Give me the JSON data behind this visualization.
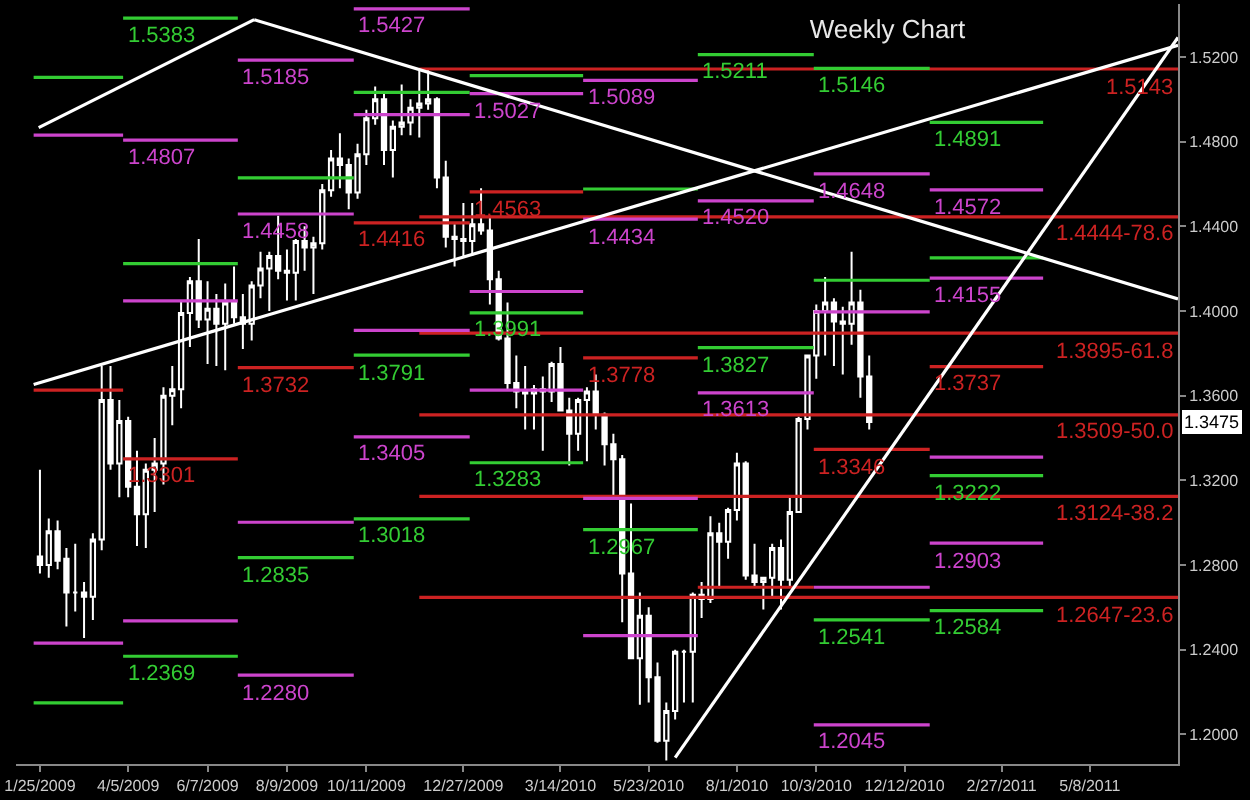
{
  "chart_data": {
    "type": "candlestick",
    "title": "Weekly Chart",
    "color": "#ffffff",
    "x": [
      "2009-01-25",
      "2009-02-01",
      "2009-02-08",
      "2009-02-15",
      "2009-02-22",
      "2009-03-01",
      "2009-03-08",
      "2009-03-15",
      "2009-03-22",
      "2009-03-29",
      "2009-04-05",
      "2009-04-12",
      "2009-04-19",
      "2009-04-26",
      "2009-05-03",
      "2009-05-10",
      "2009-05-17",
      "2009-05-24",
      "2009-05-31",
      "2009-06-07",
      "2009-06-14",
      "2009-06-21",
      "2009-06-28",
      "2009-07-05",
      "2009-07-12",
      "2009-07-19",
      "2009-07-26",
      "2009-08-02",
      "2009-08-09",
      "2009-08-16",
      "2009-08-23",
      "2009-08-30",
      "2009-09-06",
      "2009-09-13",
      "2009-09-20",
      "2009-09-27",
      "2009-10-04",
      "2009-10-11",
      "2009-10-18",
      "2009-10-25",
      "2009-11-01",
      "2009-11-08",
      "2009-11-15",
      "2009-11-22",
      "2009-11-29",
      "2009-12-06",
      "2009-12-13",
      "2009-12-20",
      "2009-12-27",
      "2010-01-03",
      "2010-01-10",
      "2010-01-17",
      "2010-01-24",
      "2010-01-31",
      "2010-02-07",
      "2010-02-14",
      "2010-02-21",
      "2010-02-28",
      "2010-03-07",
      "2010-03-14",
      "2010-03-21",
      "2010-03-28",
      "2010-04-04",
      "2010-04-11",
      "2010-04-18",
      "2010-04-25",
      "2010-05-02",
      "2010-05-09",
      "2010-05-16",
      "2010-05-23",
      "2010-05-30",
      "2010-06-06",
      "2010-06-13",
      "2010-06-20",
      "2010-06-27",
      "2010-07-04",
      "2010-07-11",
      "2010-07-18",
      "2010-07-25",
      "2010-08-01",
      "2010-08-08",
      "2010-08-15",
      "2010-08-22",
      "2010-08-29",
      "2010-09-05",
      "2010-09-12",
      "2010-09-19",
      "2010-09-26",
      "2010-10-03",
      "2010-10-10",
      "2010-10-17",
      "2010-10-24",
      "2010-10-31",
      "2010-11-07",
      "2010-11-14"
    ],
    "ohlc": [
      [
        1.284,
        1.325,
        1.276,
        1.28
      ],
      [
        1.28,
        1.302,
        1.274,
        1.296
      ],
      [
        1.296,
        1.301,
        1.278,
        1.282
      ],
      [
        1.283,
        1.288,
        1.251,
        1.267
      ],
      [
        1.267,
        1.29,
        1.258,
        1.267
      ],
      [
        1.267,
        1.272,
        1.2455,
        1.265
      ],
      [
        1.265,
        1.295,
        1.254,
        1.292
      ],
      [
        1.292,
        1.374,
        1.287,
        1.358
      ],
      [
        1.358,
        1.374,
        1.325,
        1.328
      ],
      [
        1.328,
        1.358,
        1.312,
        1.348
      ],
      [
        1.348,
        1.35,
        1.312,
        1.317
      ],
      [
        1.317,
        1.334,
        1.289,
        1.304
      ],
      [
        1.304,
        1.328,
        1.288,
        1.325
      ],
      [
        1.325,
        1.34,
        1.305,
        1.328
      ],
      [
        1.328,
        1.364,
        1.318,
        1.36
      ],
      [
        1.36,
        1.374,
        1.346,
        1.363
      ],
      [
        1.363,
        1.405,
        1.354,
        1.399
      ],
      [
        1.399,
        1.416,
        1.383,
        1.414
      ],
      [
        1.414,
        1.434,
        1.392,
        1.396
      ],
      [
        1.396,
        1.414,
        1.375,
        1.401
      ],
      [
        1.401,
        1.408,
        1.374,
        1.394
      ],
      [
        1.394,
        1.413,
        1.372,
        1.404
      ],
      [
        1.404,
        1.421,
        1.394,
        1.397
      ],
      [
        1.397,
        1.408,
        1.382,
        1.394
      ],
      [
        1.394,
        1.414,
        1.386,
        1.412
      ],
      [
        1.412,
        1.428,
        1.406,
        1.42
      ],
      [
        1.42,
        1.428,
        1.4,
        1.426
      ],
      [
        1.426,
        1.445,
        1.415,
        1.419
      ],
      [
        1.419,
        1.429,
        1.405,
        1.418
      ],
      [
        1.418,
        1.434,
        1.405,
        1.433
      ],
      [
        1.433,
        1.44,
        1.419,
        1.43
      ],
      [
        1.43,
        1.435,
        1.408,
        1.432
      ],
      [
        1.432,
        1.46,
        1.429,
        1.457
      ],
      [
        1.457,
        1.476,
        1.454,
        1.472
      ],
      [
        1.472,
        1.484,
        1.458,
        1.469
      ],
      [
        1.469,
        1.472,
        1.448,
        1.456
      ],
      [
        1.456,
        1.479,
        1.453,
        1.474
      ],
      [
        1.474,
        1.495,
        1.469,
        1.491
      ],
      [
        1.491,
        1.506,
        1.488,
        1.5
      ],
      [
        1.5,
        1.503,
        1.469,
        1.476
      ],
      [
        1.476,
        1.49,
        1.463,
        1.487
      ],
      [
        1.487,
        1.507,
        1.483,
        1.489
      ],
      [
        1.489,
        1.5,
        1.483,
        1.496
      ],
      [
        1.496,
        1.5145,
        1.482,
        1.498
      ],
      [
        1.498,
        1.514,
        1.495,
        1.5
      ],
      [
        1.5,
        1.501,
        1.458,
        1.463
      ],
      [
        1.463,
        1.471,
        1.43,
        1.435
      ],
      [
        1.435,
        1.441,
        1.421,
        1.434
      ],
      [
        1.434,
        1.451,
        1.426,
        1.433
      ],
      [
        1.433,
        1.451,
        1.426,
        1.441
      ],
      [
        1.441,
        1.458,
        1.436,
        1.438
      ],
      [
        1.438,
        1.445,
        1.403,
        1.415
      ],
      [
        1.415,
        1.419,
        1.386,
        1.387
      ],
      [
        1.387,
        1.404,
        1.363,
        1.366
      ],
      [
        1.366,
        1.379,
        1.354,
        1.362
      ],
      [
        1.362,
        1.374,
        1.344,
        1.361
      ],
      [
        1.361,
        1.365,
        1.344,
        1.363
      ],
      [
        1.363,
        1.369,
        1.334,
        1.362
      ],
      [
        1.362,
        1.376,
        1.357,
        1.375
      ],
      [
        1.375,
        1.383,
        1.353,
        1.353
      ],
      [
        1.353,
        1.359,
        1.327,
        1.342
      ],
      [
        1.342,
        1.359,
        1.334,
        1.358
      ],
      [
        1.358,
        1.364,
        1.329,
        1.362
      ],
      [
        1.362,
        1.37,
        1.344,
        1.351
      ],
      [
        1.351,
        1.352,
        1.327,
        1.337
      ],
      [
        1.337,
        1.342,
        1.311,
        1.33
      ],
      [
        1.33,
        1.332,
        1.253,
        1.276
      ],
      [
        1.276,
        1.309,
        1.236,
        1.236
      ],
      [
        1.236,
        1.267,
        1.214,
        1.256
      ],
      [
        1.256,
        1.26,
        1.215,
        1.227
      ],
      [
        1.227,
        1.234,
        1.196,
        1.197
      ],
      [
        1.197,
        1.215,
        1.1876,
        1.211
      ],
      [
        1.211,
        1.24,
        1.207,
        1.239
      ],
      [
        1.239,
        1.24,
        1.215,
        1.239
      ],
      [
        1.239,
        1.267,
        1.215,
        1.266
      ],
      [
        1.266,
        1.272,
        1.255,
        1.264
      ],
      [
        1.264,
        1.303,
        1.262,
        1.295
      ],
      [
        1.295,
        1.3,
        1.269,
        1.291
      ],
      [
        1.291,
        1.307,
        1.283,
        1.306
      ],
      [
        1.306,
        1.333,
        1.301,
        1.328
      ],
      [
        1.328,
        1.329,
        1.273,
        1.275
      ],
      [
        1.275,
        1.29,
        1.27,
        1.272
      ],
      [
        1.272,
        1.274,
        1.259,
        1.274
      ],
      [
        1.274,
        1.29,
        1.265,
        1.288
      ],
      [
        1.288,
        1.292,
        1.259,
        1.273
      ],
      [
        1.273,
        1.312,
        1.27,
        1.305
      ],
      [
        1.305,
        1.35,
        1.305,
        1.349
      ],
      [
        1.349,
        1.379,
        1.344,
        1.379
      ],
      [
        1.379,
        1.403,
        1.368,
        1.4
      ],
      [
        1.4,
        1.416,
        1.379,
        1.404
      ],
      [
        1.404,
        1.406,
        1.374,
        1.395
      ],
      [
        1.395,
        1.402,
        1.37,
        1.394
      ],
      [
        1.394,
        1.428,
        1.384,
        1.404
      ],
      [
        1.404,
        1.41,
        1.359,
        1.369
      ],
      [
        1.369,
        1.379,
        1.344,
        1.3475
      ]
    ],
    "series": [
      {
        "type": "line",
        "color": "#cc2222",
        "name": "1.5143",
        "x": [
          "2009-11-22",
          "2011-07-17"
        ],
        "values": [
          1.5143,
          1.5143
        ]
      },
      {
        "type": "line",
        "color": "#cc2222",
        "name": "1.4444-78.6",
        "x": [
          "2009-11-22",
          "2011-07-17"
        ],
        "values": [
          1.4444,
          1.4444
        ]
      },
      {
        "type": "line",
        "color": "#cc2222",
        "name": "1.3895-61.8",
        "x": [
          "2009-11-22",
          "2011-07-17"
        ],
        "values": [
          1.3895,
          1.3895
        ]
      },
      {
        "type": "line",
        "color": "#cc2222",
        "name": "1.3509-50.0",
        "x": [
          "2009-11-22",
          "2011-07-17"
        ],
        "values": [
          1.3509,
          1.3509
        ]
      },
      {
        "type": "line",
        "color": "#cc2222",
        "name": "1.3124-38.2",
        "x": [
          "2009-11-22",
          "2011-07-17"
        ],
        "values": [
          1.3124,
          1.3124
        ]
      },
      {
        "type": "line",
        "color": "#cc2222",
        "name": "1.2647-23.6",
        "x": [
          "2009-11-22",
          "2011-07-17"
        ],
        "values": [
          1.2647,
          1.2647
        ]
      },
      {
        "type": "line",
        "color": "#33cc33",
        "x": [
          "2009-01-20",
          "2009-04-01"
        ],
        "values": [
          1.5103,
          1.5103
        ]
      },
      {
        "type": "line",
        "color": "#cc44cc",
        "x": [
          "2009-01-20",
          "2009-04-01"
        ],
        "values": [
          1.4831,
          1.4831
        ]
      },
      {
        "type": "line",
        "color": "#cc2222",
        "x": [
          "2009-01-20",
          "2009-04-01"
        ],
        "values": [
          1.3626,
          1.3626
        ]
      },
      {
        "type": "line",
        "color": "#cc44cc",
        "x": [
          "2009-01-20",
          "2009-04-01"
        ],
        "values": [
          1.2431,
          1.2431
        ]
      },
      {
        "type": "line",
        "color": "#33cc33",
        "x": [
          "2009-01-20",
          "2009-04-01"
        ],
        "values": [
          1.2149,
          1.2149
        ]
      },
      {
        "type": "line",
        "color": "#33cc33",
        "name": "1.5383",
        "x": [
          "2009-04-01",
          "2009-07-01"
        ],
        "values": [
          1.5383,
          1.5383
        ]
      },
      {
        "type": "line",
        "color": "#cc44cc",
        "name": "1.4807",
        "x": [
          "2009-04-01",
          "2009-07-01"
        ],
        "values": [
          1.4807,
          1.4807
        ]
      },
      {
        "type": "line",
        "color": "#33cc33",
        "x": [
          "2009-04-01",
          "2009-07-01"
        ],
        "values": [
          1.4224,
          1.4224
        ]
      },
      {
        "type": "line",
        "color": "#cc44cc",
        "x": [
          "2009-04-01",
          "2009-07-01"
        ],
        "values": [
          1.4048,
          1.4048
        ]
      },
      {
        "type": "line",
        "color": "#cc2222",
        "name": "1.3301",
        "x": [
          "2009-04-01",
          "2009-07-01"
        ],
        "values": [
          1.3301,
          1.3301
        ]
      },
      {
        "type": "line",
        "color": "#cc44cc",
        "x": [
          "2009-04-01",
          "2009-07-01"
        ],
        "values": [
          1.2536,
          1.2536
        ]
      },
      {
        "type": "line",
        "color": "#33cc33",
        "name": "1.2369",
        "x": [
          "2009-04-01",
          "2009-07-01"
        ],
        "values": [
          1.2369,
          1.2369
        ]
      },
      {
        "type": "line",
        "color": "#cc44cc",
        "name": "1.5185",
        "x": [
          "2009-07-01",
          "2009-10-01"
        ],
        "values": [
          1.5185,
          1.5185
        ]
      },
      {
        "type": "line",
        "color": "#33cc33",
        "x": [
          "2009-07-01",
          "2009-10-01"
        ],
        "values": [
          1.4629,
          1.4629
        ]
      },
      {
        "type": "line",
        "color": "#cc44cc",
        "name": "1.4458",
        "x": [
          "2009-07-01",
          "2009-10-01"
        ],
        "values": [
          1.4458,
          1.4458
        ]
      },
      {
        "type": "line",
        "color": "#cc2222",
        "name": "1.3732",
        "x": [
          "2009-07-01",
          "2009-10-01"
        ],
        "values": [
          1.3732,
          1.3732
        ]
      },
      {
        "type": "line",
        "color": "#cc44cc",
        "x": [
          "2009-07-01",
          "2009-10-01"
        ],
        "values": [
          1.3002,
          1.3002
        ]
      },
      {
        "type": "line",
        "color": "#33cc33",
        "name": "1.2835",
        "x": [
          "2009-07-01",
          "2009-10-01"
        ],
        "values": [
          1.2835,
          1.2835
        ]
      },
      {
        "type": "line",
        "color": "#cc44cc",
        "name": "1.2280",
        "x": [
          "2009-07-01",
          "2009-10-01"
        ],
        "values": [
          1.228,
          1.228
        ]
      },
      {
        "type": "line",
        "color": "#cc44cc",
        "name": "1.5427",
        "x": [
          "2009-10-01",
          "2010-01-01"
        ],
        "values": [
          1.5427,
          1.5427
        ]
      },
      {
        "type": "line",
        "color": "#33cc33",
        "x": [
          "2009-10-01",
          "2010-01-01"
        ],
        "values": [
          1.5033,
          1.5033
        ]
      },
      {
        "type": "line",
        "color": "#cc44cc",
        "x": [
          "2009-10-01",
          "2010-01-01"
        ],
        "values": [
          1.4927,
          1.4927
        ]
      },
      {
        "type": "line",
        "color": "#cc2222",
        "name": "1.4416",
        "x": [
          "2009-10-01",
          "2010-01-01"
        ],
        "values": [
          1.4416,
          1.4416
        ]
      },
      {
        "type": "line",
        "color": "#cc44cc",
        "x": [
          "2009-10-01",
          "2010-01-01"
        ],
        "values": [
          1.3908,
          1.3908
        ]
      },
      {
        "type": "line",
        "color": "#33cc33",
        "name": "1.3791",
        "x": [
          "2009-10-01",
          "2010-01-01"
        ],
        "values": [
          1.3791,
          1.3791
        ]
      },
      {
        "type": "line",
        "color": "#cc44cc",
        "name": "1.3405",
        "x": [
          "2009-10-01",
          "2010-01-01"
        ],
        "values": [
          1.3405,
          1.3405
        ]
      },
      {
        "type": "line",
        "color": "#33cc33",
        "name": "1.3018",
        "x": [
          "2009-10-01",
          "2010-01-01"
        ],
        "values": [
          1.3018,
          1.3018
        ]
      },
      {
        "type": "line",
        "color": "#33cc33",
        "x": [
          "2010-01-01",
          "2010-04-01"
        ],
        "values": [
          1.5112,
          1.5112
        ]
      },
      {
        "type": "line",
        "color": "#cc44cc",
        "name": "1.5027",
        "x": [
          "2010-01-01",
          "2010-04-01"
        ],
        "values": [
          1.5027,
          1.5027
        ]
      },
      {
        "type": "line",
        "color": "#cc2222",
        "name": "1.4563",
        "x": [
          "2010-01-01",
          "2010-04-01"
        ],
        "values": [
          1.4563,
          1.4563
        ]
      },
      {
        "type": "line",
        "color": "#cc44cc",
        "x": [
          "2010-01-01",
          "2010-04-01"
        ],
        "values": [
          1.4092,
          1.4092
        ]
      },
      {
        "type": "line",
        "color": "#33cc33",
        "name": "1.3991",
        "x": [
          "2010-01-01",
          "2010-04-01"
        ],
        "values": [
          1.3991,
          1.3991
        ]
      },
      {
        "type": "line",
        "color": "#cc44cc",
        "x": [
          "2010-01-01",
          "2010-04-01"
        ],
        "values": [
          1.3626,
          1.3626
        ]
      },
      {
        "type": "line",
        "color": "#33cc33",
        "name": "1.3283",
        "x": [
          "2010-01-01",
          "2010-04-01"
        ],
        "values": [
          1.3283,
          1.3283
        ]
      },
      {
        "type": "line",
        "color": "#cc44cc",
        "name": "1.5089",
        "x": [
          "2010-04-01",
          "2010-07-01"
        ],
        "values": [
          1.5089,
          1.5089
        ]
      },
      {
        "type": "line",
        "color": "#33cc33",
        "x": [
          "2010-04-01",
          "2010-07-01"
        ],
        "values": [
          1.4576,
          1.4576
        ]
      },
      {
        "type": "line",
        "color": "#cc44cc",
        "name": "1.4434",
        "x": [
          "2010-04-01",
          "2010-07-01"
        ],
        "values": [
          1.4434,
          1.4434
        ]
      },
      {
        "type": "line",
        "color": "#cc2222",
        "name": "1.3778",
        "x": [
          "2010-04-01",
          "2010-07-01"
        ],
        "values": [
          1.3778,
          1.3778
        ]
      },
      {
        "type": "line",
        "color": "#cc44cc",
        "x": [
          "2010-04-01",
          "2010-07-01"
        ],
        "values": [
          1.3115,
          1.3115
        ]
      },
      {
        "type": "line",
        "color": "#33cc33",
        "name": "1.2967",
        "x": [
          "2010-04-01",
          "2010-07-01"
        ],
        "values": [
          1.2967,
          1.2967
        ]
      },
      {
        "type": "line",
        "color": "#cc44cc",
        "x": [
          "2010-04-01",
          "2010-07-01"
        ],
        "values": [
          1.2466,
          1.2466
        ]
      },
      {
        "type": "line",
        "color": "#33cc33",
        "name": "1.5211",
        "x": [
          "2010-07-01",
          "2010-10-01"
        ],
        "values": [
          1.5211,
          1.5211
        ]
      },
      {
        "type": "line",
        "color": "#cc44cc",
        "name": "1.4520",
        "x": [
          "2010-07-01",
          "2010-10-01"
        ],
        "values": [
          1.452,
          1.452
        ]
      },
      {
        "type": "line",
        "color": "#33cc33",
        "name": "1.3827",
        "x": [
          "2010-07-01",
          "2010-10-01"
        ],
        "values": [
          1.3827,
          1.3827
        ]
      },
      {
        "type": "line",
        "color": "#cc44cc",
        "name": "1.3613",
        "x": [
          "2010-07-01",
          "2010-10-01"
        ],
        "values": [
          1.3613,
          1.3613
        ]
      },
      {
        "type": "line",
        "color": "#cc2222",
        "x": [
          "2010-07-01",
          "2010-10-01"
        ],
        "values": [
          1.2695,
          1.2695
        ]
      },
      {
        "type": "line",
        "color": "#33cc33",
        "name": "1.5146",
        "x": [
          "2010-10-01",
          "2011-01-01"
        ],
        "values": [
          1.5146,
          1.5146
        ]
      },
      {
        "type": "line",
        "color": "#cc44cc",
        "name": "1.4648",
        "x": [
          "2010-10-01",
          "2011-01-01"
        ],
        "values": [
          1.4648,
          1.4648
        ]
      },
      {
        "type": "line",
        "color": "#33cc33",
        "x": [
          "2010-10-01",
          "2011-01-01"
        ],
        "values": [
          1.4145,
          1.4145
        ]
      },
      {
        "type": "line",
        "color": "#cc44cc",
        "x": [
          "2010-10-01",
          "2011-01-01"
        ],
        "values": [
          1.3996,
          1.3996
        ]
      },
      {
        "type": "line",
        "color": "#cc2222",
        "name": "1.3346",
        "x": [
          "2010-10-01",
          "2011-01-01"
        ],
        "values": [
          1.3346,
          1.3346
        ]
      },
      {
        "type": "line",
        "color": "#cc44cc",
        "x": [
          "2010-10-01",
          "2011-01-01"
        ],
        "values": [
          1.2695,
          1.2695
        ]
      },
      {
        "type": "line",
        "color": "#33cc33",
        "name": "1.2541",
        "x": [
          "2010-10-01",
          "2011-01-01"
        ],
        "values": [
          1.2541,
          1.2541
        ]
      },
      {
        "type": "line",
        "color": "#cc44cc",
        "name": "1.2045",
        "x": [
          "2010-10-01",
          "2011-01-01"
        ],
        "values": [
          1.2045,
          1.2045
        ]
      },
      {
        "type": "line",
        "color": "#33cc33",
        "name": "1.4891",
        "x": [
          "2011-01-01",
          "2011-04-01"
        ],
        "values": [
          1.4891,
          1.4891
        ]
      },
      {
        "type": "line",
        "color": "#cc44cc",
        "name": "1.4572",
        "x": [
          "2011-01-01",
          "2011-04-01"
        ],
        "values": [
          1.4572,
          1.4572
        ]
      },
      {
        "type": "line",
        "color": "#33cc33",
        "x": [
          "2011-01-01",
          "2011-04-01"
        ],
        "values": [
          1.4251,
          1.4251
        ]
      },
      {
        "type": "line",
        "color": "#cc44cc",
        "name": "1.4155",
        "x": [
          "2011-01-01",
          "2011-04-01"
        ],
        "values": [
          1.4155,
          1.4155
        ]
      },
      {
        "type": "line",
        "color": "#cc2222",
        "name": "1.3737",
        "x": [
          "2011-01-01",
          "2011-04-01"
        ],
        "values": [
          1.3737,
          1.3737
        ]
      },
      {
        "type": "line",
        "color": "#cc44cc",
        "x": [
          "2011-01-01",
          "2011-04-01"
        ],
        "values": [
          1.331,
          1.331
        ]
      },
      {
        "type": "line",
        "color": "#33cc33",
        "name": "1.3222",
        "x": [
          "2011-01-01",
          "2011-04-01"
        ],
        "values": [
          1.3222,
          1.3222
        ]
      },
      {
        "type": "line",
        "color": "#cc44cc",
        "name": "1.2903",
        "x": [
          "2011-01-01",
          "2011-04-01"
        ],
        "values": [
          1.2903,
          1.2903
        ]
      },
      {
        "type": "line",
        "color": "#33cc33",
        "name": "1.2584",
        "x": [
          "2011-01-01",
          "2011-04-01"
        ],
        "values": [
          1.2584,
          1.2584
        ]
      },
      {
        "type": "line",
        "color": "#ffffff",
        "x": [
          "2009-01-20",
          "2011-07-17"
        ],
        "values": [
          1.3653,
          1.5255
        ]
      },
      {
        "type": "line",
        "color": "#ffffff",
        "x": [
          "2009-01-24",
          "2009-07-14"
        ],
        "values": [
          1.4866,
          1.5376
        ]
      },
      {
        "type": "line",
        "color": "#ffffff",
        "x": [
          "2009-07-14",
          "2011-07-17"
        ],
        "values": [
          1.5376,
          1.4057
        ]
      },
      {
        "type": "line",
        "color": "#ffffff",
        "x": [
          "2010-06-13",
          "2011-07-17"
        ],
        "values": [
          1.189,
          1.5292
        ]
      }
    ],
    "annotations": [
      {
        "text": "1.3475",
        "y": 1.3475
      }
    ],
    "xlim": [
      "2009-01-06",
      "2011-07-17"
    ],
    "ylim": [
      1.186,
      1.545
    ],
    "xticks": [
      {
        "value": "2009-01-25",
        "label": "1/25/2009"
      },
      {
        "value": "2009-04-05",
        "label": "4/5/2009"
      },
      {
        "value": "2009-06-07",
        "label": "6/7/2009"
      },
      {
        "value": "2009-08-09",
        "label": "8/9/2009"
      },
      {
        "value": "2009-10-11",
        "label": "10/11/2009"
      },
      {
        "value": "2009-12-27",
        "label": "12/27/2009"
      },
      {
        "value": "2010-03-14",
        "label": "3/14/2010"
      },
      {
        "value": "2010-05-23",
        "label": "5/23/2010"
      },
      {
        "value": "2010-08-01",
        "label": "8/1/2010"
      },
      {
        "value": "2010-10-03",
        "label": "10/3/2010"
      },
      {
        "value": "2010-12-12",
        "label": "12/12/2010"
      },
      {
        "value": "2011-02-27",
        "label": "2/27/2011"
      },
      {
        "value": "2011-05-08",
        "label": "5/8/2011"
      }
    ],
    "yticks": [
      {
        "value": 1.2,
        "label": "1.2000"
      },
      {
        "value": 1.24,
        "label": "1.2400"
      },
      {
        "value": 1.28,
        "label": "1.2800"
      },
      {
        "value": 1.32,
        "label": "1.3200"
      },
      {
        "value": 1.36,
        "label": "1.3600"
      },
      {
        "value": 1.4,
        "label": "1.4000"
      },
      {
        "value": 1.44,
        "label": "1.4400"
      },
      {
        "value": 1.48,
        "label": "1.4800"
      },
      {
        "value": 1.52,
        "label": "1.5200"
      }
    ]
  }
}
